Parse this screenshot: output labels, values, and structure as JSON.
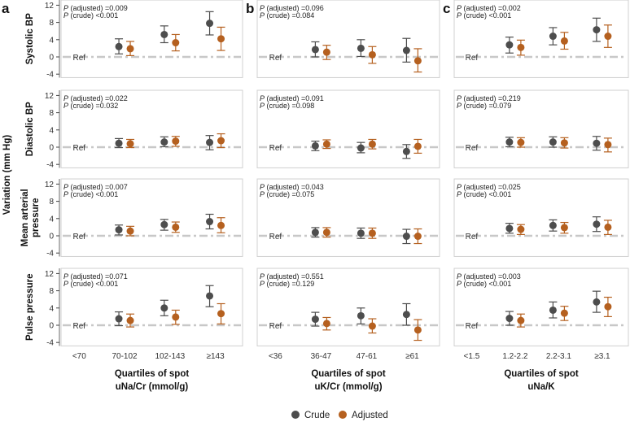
{
  "chart_data": {
    "type": "scatter",
    "subtype": "point-range faceted",
    "ylabel": "Variation (mm Hg)",
    "ylim": [
      -4,
      12
    ],
    "yticks": [
      -4,
      0,
      4,
      8,
      12
    ],
    "ref_label": "Ref",
    "legend": {
      "position": "bottom",
      "entries": [
        {
          "name": "Crude",
          "color": "#4d4d4d"
        },
        {
          "name": "Adjusted",
          "color": "#b5601f"
        }
      ]
    },
    "ref_color": "#c8c8c8",
    "rows": [
      "Systolic BP",
      "Diastolic BP",
      "Mean arterial\npressure",
      "Pulse pressure"
    ],
    "columns": [
      {
        "letter": "a",
        "categories": [
          "<70",
          "70-102",
          "102-143",
          "≥143"
        ],
        "xlabel": [
          "Quartiles of spot",
          "uNa/Cr (mmol/g)"
        ]
      },
      {
        "letter": "b",
        "categories": [
          "<36",
          "36-47",
          "47-61",
          "≥61"
        ],
        "xlabel": [
          "Quartiles of spot",
          "uK/Cr (mmol/g)"
        ]
      },
      {
        "letter": "c",
        "categories": [
          "<1.5",
          "1.2-2.2",
          "2.2-3.1",
          "≥3.1"
        ],
        "xlabel": [
          "Quartiles of spot",
          "uNa/K"
        ]
      }
    ],
    "panels": [
      [
        {
          "p_adj": "=0.009",
          "p_crude": "<0.001",
          "crude": [
            [
              2.4,
              0.7,
              4.2
            ],
            [
              5.2,
              3.3,
              7.2
            ],
            [
              7.8,
              5.1,
              10.5
            ]
          ],
          "adjusted": [
            [
              1.9,
              0.3,
              3.6
            ],
            [
              3.3,
              1.4,
              5.2
            ],
            [
              4.2,
              1.5,
              6.9
            ]
          ]
        },
        {
          "p_adj": "=0.096",
          "p_crude": "=0.084",
          "crude": [
            [
              1.7,
              0.0,
              3.5
            ],
            [
              2.0,
              0.1,
              4.0
            ],
            [
              1.5,
              -1.2,
              4.3
            ]
          ],
          "adjusted": [
            [
              1.1,
              -0.6,
              2.7
            ],
            [
              0.5,
              -1.5,
              2.4
            ],
            [
              -0.9,
              -3.5,
              1.9
            ]
          ]
        },
        {
          "p_adj": "=0.002",
          "p_crude": "<0.001",
          "crude": [
            [
              2.8,
              0.9,
              4.6
            ],
            [
              4.8,
              2.8,
              6.8
            ],
            [
              6.3,
              3.6,
              9.0
            ]
          ],
          "adjusted": [
            [
              2.2,
              0.4,
              3.9
            ],
            [
              3.7,
              1.8,
              5.7
            ],
            [
              4.8,
              2.2,
              7.4
            ]
          ]
        }
      ],
      [
        {
          "p_adj": "=0.022",
          "p_crude": "=0.032",
          "crude": [
            [
              0.9,
              -0.1,
              2.0
            ],
            [
              1.2,
              0.1,
              2.4
            ],
            [
              1.1,
              -0.6,
              2.7
            ]
          ],
          "adjusted": [
            [
              0.8,
              -0.1,
              1.8
            ],
            [
              1.4,
              0.2,
              2.5
            ],
            [
              1.5,
              -0.1,
              3.1
            ]
          ]
        },
        {
          "p_adj": "=0.091",
          "p_crude": "=0.098",
          "crude": [
            [
              0.3,
              -0.8,
              1.4
            ],
            [
              -0.2,
              -1.3,
              1.1
            ],
            [
              -1.0,
              -2.6,
              0.6
            ]
          ],
          "adjusted": [
            [
              0.7,
              -0.3,
              1.7
            ],
            [
              0.7,
              -0.4,
              1.8
            ],
            [
              0.2,
              -1.4,
              1.8
            ]
          ]
        },
        {
          "p_adj": "=0.219",
          "p_crude": "=0.079",
          "crude": [
            [
              1.2,
              0.1,
              2.3
            ],
            [
              1.2,
              0.0,
              2.4
            ],
            [
              0.9,
              -0.7,
              2.5
            ]
          ],
          "adjusted": [
            [
              1.1,
              0.0,
              2.2
            ],
            [
              1.0,
              -0.2,
              2.2
            ],
            [
              0.6,
              -1.1,
              2.1
            ]
          ]
        }
      ],
      [
        {
          "p_adj": "=0.007",
          "p_crude": "<0.001",
          "crude": [
            [
              1.4,
              0.2,
              2.5
            ],
            [
              2.6,
              1.3,
              3.8
            ],
            [
              3.3,
              1.6,
              5.0
            ]
          ],
          "adjusted": [
            [
              1.1,
              0.0,
              2.2
            ],
            [
              2.0,
              0.8,
              3.2
            ],
            [
              2.4,
              0.7,
              4.2
            ]
          ]
        },
        {
          "p_adj": "=0.043",
          "p_crude": "=0.075",
          "crude": [
            [
              0.8,
              -0.3,
              1.9
            ],
            [
              0.6,
              -0.6,
              1.8
            ],
            [
              -0.1,
              -1.8,
              1.5
            ]
          ],
          "adjusted": [
            [
              0.8,
              -0.3,
              1.9
            ],
            [
              0.6,
              -0.6,
              1.8
            ],
            [
              -0.1,
              -1.8,
              1.6
            ]
          ]
        },
        {
          "p_adj": "=0.025",
          "p_crude": "<0.001",
          "crude": [
            [
              1.7,
              0.6,
              2.9
            ],
            [
              2.4,
              1.1,
              3.7
            ],
            [
              2.7,
              1.0,
              4.4
            ]
          ],
          "adjusted": [
            [
              1.5,
              0.3,
              2.6
            ],
            [
              1.9,
              0.6,
              3.1
            ],
            [
              2.0,
              0.3,
              3.6
            ]
          ]
        }
      ],
      [
        {
          "p_adj": "=0.071",
          "p_crude": "<0.001",
          "crude": [
            [
              1.5,
              -0.1,
              3.1
            ],
            [
              4.0,
              2.2,
              5.8
            ],
            [
              6.8,
              4.3,
              9.2
            ]
          ],
          "adjusted": [
            [
              1.1,
              -0.4,
              2.6
            ],
            [
              1.9,
              0.2,
              3.5
            ],
            [
              2.7,
              0.3,
              5.0
            ]
          ]
        },
        {
          "p_adj": "=0.551",
          "p_crude": "=0.129",
          "crude": [
            [
              1.4,
              -0.2,
              3.0
            ],
            [
              2.2,
              0.3,
              4.0
            ],
            [
              2.5,
              0.0,
              5.0
            ]
          ],
          "adjusted": [
            [
              0.4,
              -1.1,
              1.8
            ],
            [
              -0.2,
              -1.8,
              1.5
            ],
            [
              -1.1,
              -3.5,
              1.3
            ]
          ]
        },
        {
          "p_adj": "=0.003",
          "p_crude": "<0.001",
          "crude": [
            [
              1.6,
              0.0,
              3.2
            ],
            [
              3.5,
              1.7,
              5.4
            ],
            [
              5.4,
              3.0,
              7.9
            ]
          ],
          "adjusted": [
            [
              1.1,
              -0.4,
              2.6
            ],
            [
              2.8,
              1.1,
              4.4
            ],
            [
              4.3,
              2.0,
              6.5
            ]
          ]
        }
      ]
    ]
  }
}
